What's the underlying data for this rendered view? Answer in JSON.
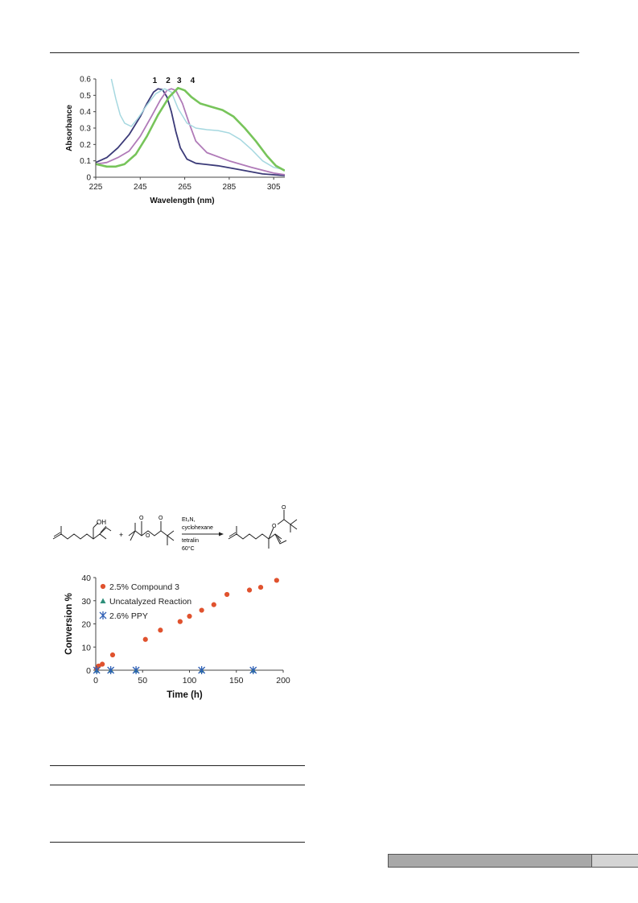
{
  "chart_data": [
    {
      "type": "line",
      "xlabel": "Wavelength (nm)",
      "ylabel": "Absorbance",
      "xlim": [
        225,
        310
      ],
      "ylim": [
        0,
        0.6
      ],
      "xticks": [
        225,
        245,
        265,
        285,
        305
      ],
      "yticks": [
        0,
        0.1,
        0.2,
        0.3,
        0.4,
        0.5,
        0.6
      ],
      "peak_labels": [
        "1",
        "2",
        "3",
        "4"
      ],
      "grid": false,
      "series": [
        {
          "color": "#3b3a78",
          "width": 1.8,
          "points": [
            [
              225,
              0.09
            ],
            [
              230,
              0.12
            ],
            [
              235,
              0.18
            ],
            [
              240,
              0.26
            ],
            [
              245,
              0.37
            ],
            [
              248,
              0.45
            ],
            [
              251,
              0.52
            ],
            [
              253,
              0.54
            ],
            [
              255,
              0.535
            ],
            [
              257,
              0.49
            ],
            [
              259,
              0.4
            ],
            [
              261,
              0.28
            ],
            [
              263,
              0.18
            ],
            [
              266,
              0.11
            ],
            [
              270,
              0.085
            ],
            [
              280,
              0.07
            ],
            [
              290,
              0.045
            ],
            [
              300,
              0.02
            ],
            [
              310,
              0.01
            ]
          ]
        },
        {
          "color": "#b07ab8",
          "width": 1.8,
          "points": [
            [
              225,
              0.08
            ],
            [
              230,
              0.09
            ],
            [
              235,
              0.12
            ],
            [
              240,
              0.16
            ],
            [
              245,
              0.25
            ],
            [
              250,
              0.37
            ],
            [
              254,
              0.47
            ],
            [
              257,
              0.53
            ],
            [
              259,
              0.54
            ],
            [
              261,
              0.53
            ],
            [
              264,
              0.45
            ],
            [
              267,
              0.33
            ],
            [
              270,
              0.22
            ],
            [
              275,
              0.15
            ],
            [
              285,
              0.1
            ],
            [
              295,
              0.06
            ],
            [
              305,
              0.025
            ],
            [
              310,
              0.015
            ]
          ]
        },
        {
          "color": "#a6d8e0",
          "width": 1.5,
          "points": [
            [
              232,
              0.6
            ],
            [
              234,
              0.48
            ],
            [
              236,
              0.38
            ],
            [
              238,
              0.33
            ],
            [
              241,
              0.31
            ],
            [
              244,
              0.36
            ],
            [
              248,
              0.44
            ],
            [
              252,
              0.51
            ],
            [
              256,
              0.54
            ],
            [
              259,
              0.52
            ],
            [
              262,
              0.42
            ],
            [
              266,
              0.33
            ],
            [
              270,
              0.3
            ],
            [
              275,
              0.29
            ],
            [
              280,
              0.285
            ],
            [
              285,
              0.27
            ],
            [
              290,
              0.23
            ],
            [
              295,
              0.17
            ],
            [
              300,
              0.1
            ],
            [
              305,
              0.06
            ],
            [
              310,
              0.045
            ]
          ]
        },
        {
          "color": "#77c45a",
          "width": 2.6,
          "points": [
            [
              225,
              0.08
            ],
            [
              230,
              0.065
            ],
            [
              234,
              0.065
            ],
            [
              238,
              0.08
            ],
            [
              243,
              0.14
            ],
            [
              248,
              0.25
            ],
            [
              253,
              0.38
            ],
            [
              258,
              0.49
            ],
            [
              262,
              0.545
            ],
            [
              265,
              0.53
            ],
            [
              268,
              0.49
            ],
            [
              272,
              0.45
            ],
            [
              277,
              0.43
            ],
            [
              282,
              0.41
            ],
            [
              287,
              0.37
            ],
            [
              292,
              0.3
            ],
            [
              297,
              0.22
            ],
            [
              302,
              0.13
            ],
            [
              306,
              0.07
            ],
            [
              310,
              0.04
            ]
          ]
        }
      ]
    },
    {
      "type": "scatter",
      "xlabel": "Time (h)",
      "ylabel": "Conversion %",
      "xlim": [
        0,
        200
      ],
      "ylim": [
        0,
        40
      ],
      "xticks": [
        0,
        50,
        100,
        150,
        200
      ],
      "yticks": [
        0,
        10,
        20,
        30,
        40
      ],
      "grid": false,
      "legend_position": "top-left",
      "series": [
        {
          "name": "2.5% Compound 3",
          "marker": "circle",
          "color": "#e0522e",
          "x": [
            1,
            3,
            7,
            18,
            53,
            69,
            90,
            100,
            113,
            126,
            140,
            164,
            176,
            193
          ],
          "y": [
            0.5,
            1.8,
            2.6,
            6.6,
            13.3,
            17.3,
            21,
            23.3,
            25.9,
            28.3,
            32.7,
            34.6,
            35.8,
            38.8
          ]
        },
        {
          "name": "Uncatalyzed Reaction",
          "marker": "triangle",
          "color": "#2e8f7a",
          "x": [
            1,
            16,
            43,
            113,
            168
          ],
          "y": [
            0,
            0,
            0,
            0,
            0
          ]
        },
        {
          "name": "2.6% PPY",
          "marker": "asterisk",
          "color": "#2f5fb5",
          "x": [
            1,
            16,
            43,
            113,
            168
          ],
          "y": [
            0,
            0,
            0,
            0,
            0
          ]
        }
      ]
    }
  ],
  "scheme": {
    "reagents": [
      "Et₃N,",
      "cyclohexane",
      "tetralin",
      "60°C"
    ],
    "oh_label": "OH",
    "plus": "+"
  }
}
